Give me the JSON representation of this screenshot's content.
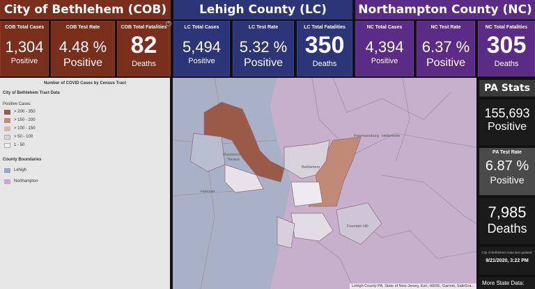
{
  "headers": {
    "cob": "City of Bethlehem (COB)",
    "lc": "Lehigh County (LC)",
    "nc": "Northampton County (NC)"
  },
  "cards": {
    "cob_cases": {
      "label": "COB Total Cases",
      "value": "1,304",
      "sub": "Positive"
    },
    "cob_rate": {
      "label": "COB Test Rate",
      "value": "4.48 %",
      "sub": "Positive"
    },
    "cob_fatal": {
      "label": "COB Total Fatalities",
      "value": "82",
      "sub": "Deaths"
    },
    "lc_cases": {
      "label": "LC Total Cases",
      "value": "5,494",
      "sub": "Positive"
    },
    "lc_rate": {
      "label": "LC Test Rate",
      "value": "5.32 %",
      "sub": "Positive"
    },
    "lc_fatal": {
      "label": "LC Total Fatalities",
      "value": "350",
      "sub": "Deaths"
    },
    "nc_cases": {
      "label": "NC Total Cases",
      "value": "4,394",
      "sub": "Positive"
    },
    "nc_rate": {
      "label": "NC Test Rate",
      "value": "6.37 %",
      "sub": "Positive"
    },
    "nc_fatal": {
      "label": "NC Total Fatalities",
      "value": "305",
      "sub": "Deaths"
    }
  },
  "legend": {
    "title": "Number of COVID Cases by Census Tract",
    "section": "City of Bethlehem Tract Data",
    "positive_heading": "Positive Cases",
    "classes": [
      {
        "label": "> 200 - 350",
        "color": "#9b5a48"
      },
      {
        "label": "> 150 - 200",
        "color": "#c08a77"
      },
      {
        "label": "> 100 - 150",
        "color": "#d7b8b0"
      },
      {
        "label": "> 50 - 100",
        "color": "#d8d4dd"
      },
      {
        "label": "1 - 50",
        "color": "#eeeeee"
      }
    ],
    "county_heading": "County Boundaries",
    "counties": [
      {
        "label": "Lehigh",
        "color": "#9ea6c4"
      },
      {
        "label": "Northampton",
        "color": "#c6a9d0"
      }
    ]
  },
  "map": {
    "attribution": "Lehigh County PA, State of New Jersey, Esri, HERE, Garmin, SafeGra...",
    "place_labels": [
      "Bethlehem",
      "Rosemont Terrace",
      "Fountain Hill",
      "Hanover",
      "Freemansburg",
      "Hellertown"
    ]
  },
  "pa": {
    "title": "PA Stats",
    "cases": "155,693",
    "cases_sub": "Positive",
    "rate_label": "PA Test Rate",
    "rate": "6.87 %",
    "rate_sub": "Positive",
    "deaths": "7,985",
    "deaths_sub": "Deaths",
    "update_note": "City of Bethlehem Data last updated:",
    "update_date": "9/21/2020, 3:22 PM",
    "more": "More State Data:"
  },
  "colors": {
    "cob": "#7a2e1c",
    "lc": "#2c3577",
    "nc": "#5b2c86"
  }
}
